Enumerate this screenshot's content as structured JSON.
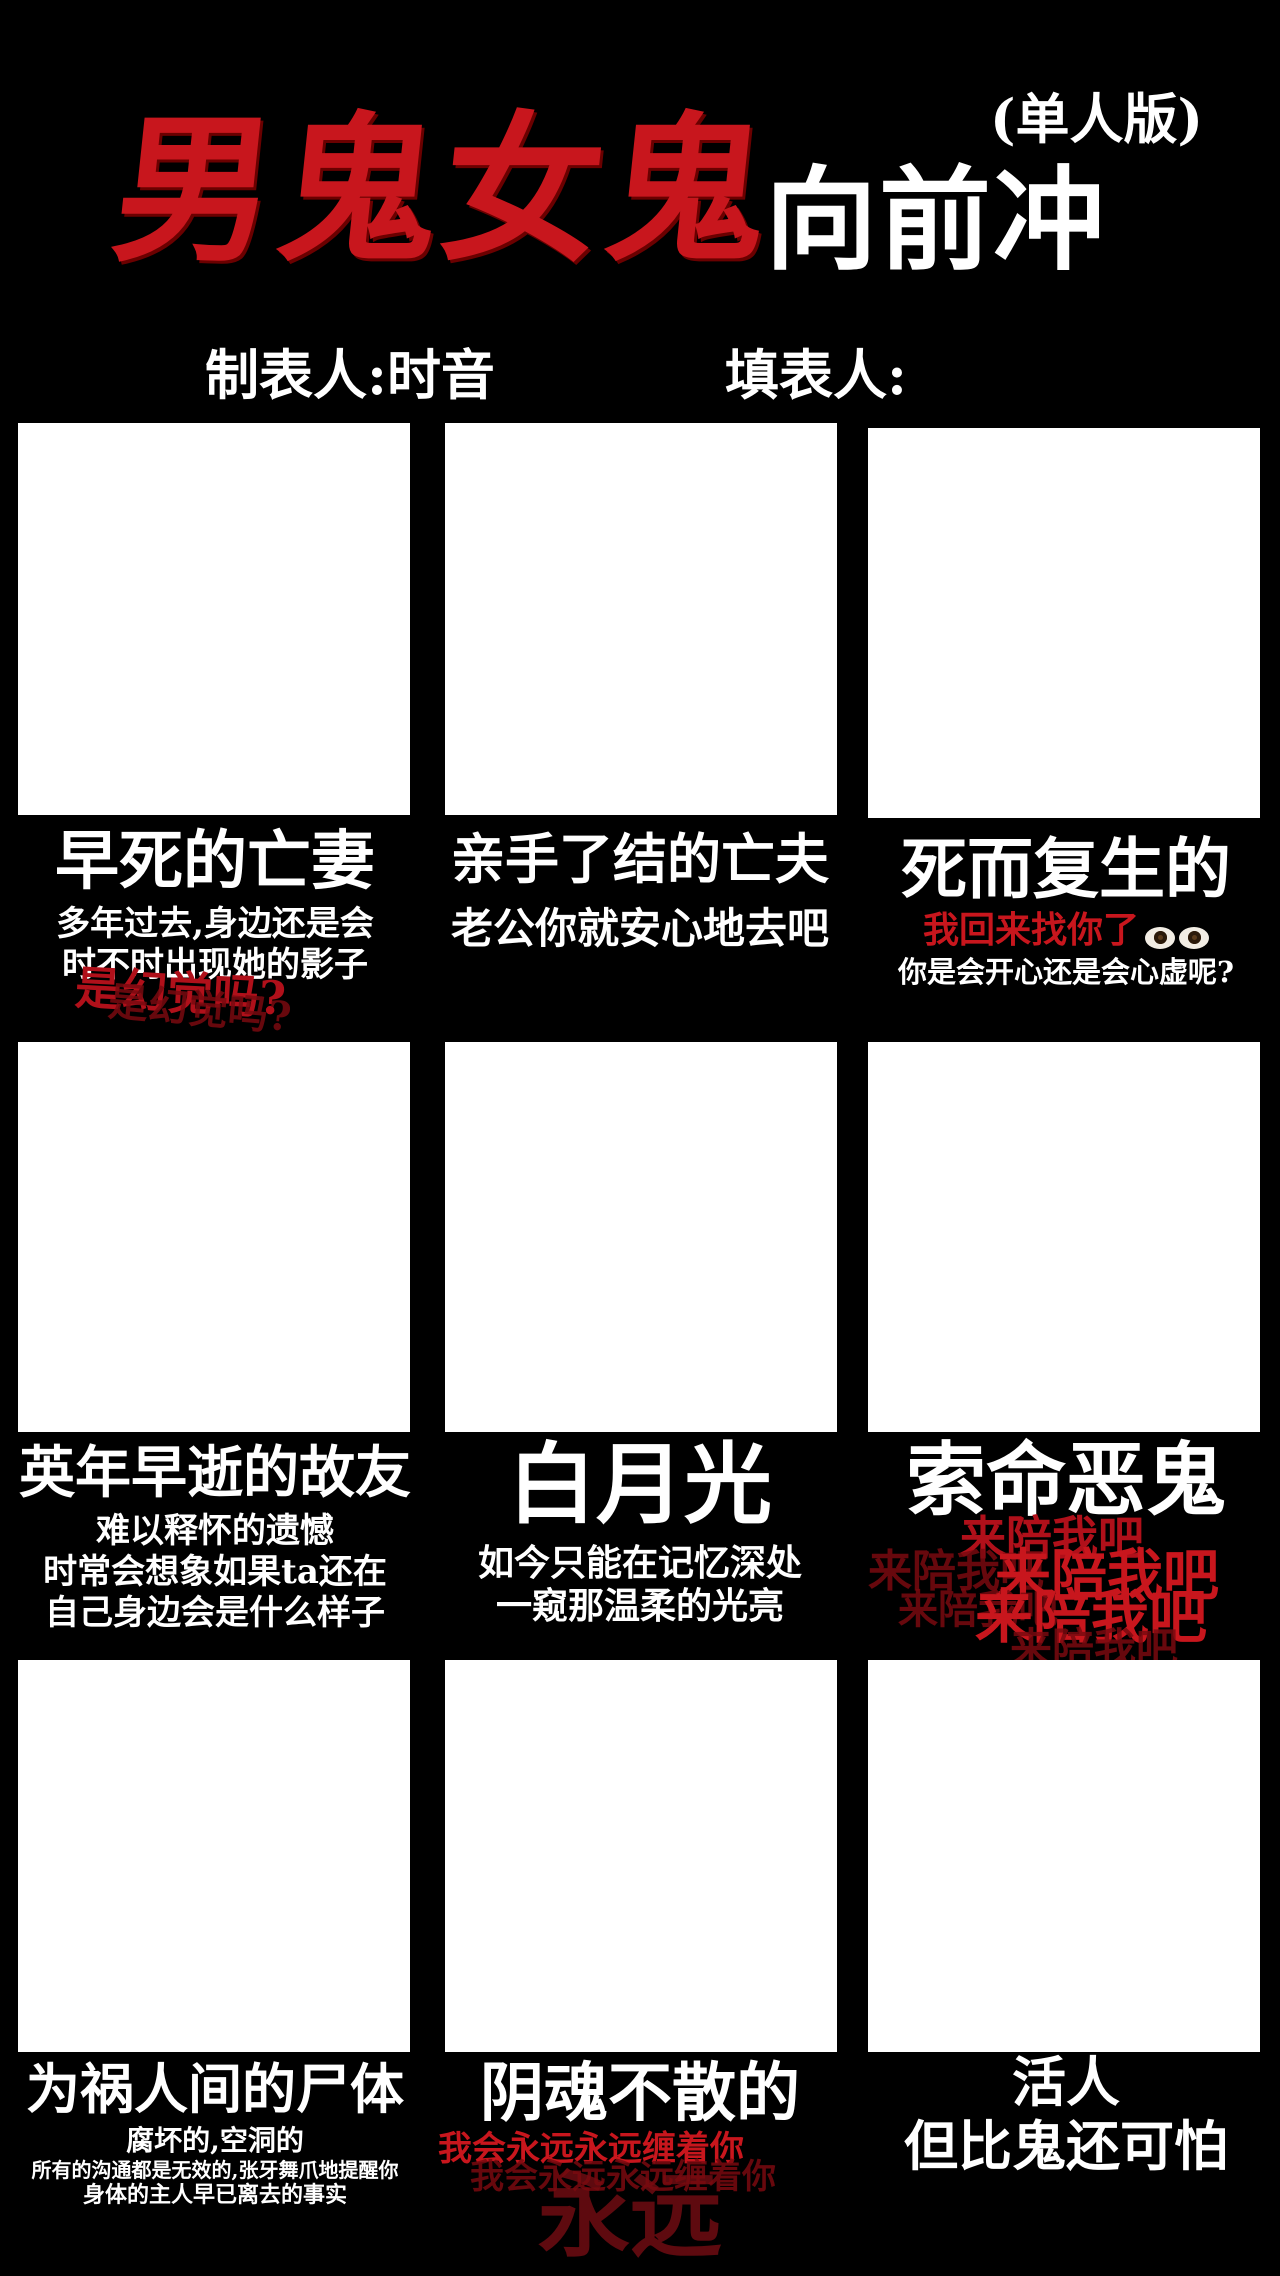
{
  "header": {
    "title_red": "男鬼女鬼",
    "title_white": "向前冲",
    "subtitle": "(单人版)",
    "maker_label": "制表人:",
    "maker_name": "时音",
    "filler_label": "填表人:"
  },
  "cells": [
    {
      "title": "早死的亡妻",
      "lines": [
        "多年过去,身边还是会",
        "时不时出现她的影子"
      ],
      "red_lines": [
        "是幻觉吗?",
        "是幻觉吗?"
      ]
    },
    {
      "title": "亲手了结的亡夫",
      "lines": [
        "老公你就安心地去吧"
      ]
    },
    {
      "title": "死而复生的",
      "red_line": "我回来找你了",
      "eyes_icon": "eyes-emoji",
      "lines": [
        "你是会开心还是会心虚呢?"
      ]
    },
    {
      "title": "英年早逝的故友",
      "lines": [
        "难以释怀的遗憾",
        "时常会想象如果ta还在",
        "自己身边会是什么样子"
      ]
    },
    {
      "title": "白月光",
      "lines": [
        "如今只能在记忆深处",
        "一窥那温柔的光亮"
      ]
    },
    {
      "title": "索命恶鬼",
      "red_lines": [
        "来陪我吧",
        "来陪我吧",
        "来陪我吧",
        "来陪我吧",
        "来陪我吧",
        "来陪我吧"
      ]
    },
    {
      "title": "为祸人间的尸体",
      "lines": [
        "腐坏的,空洞的",
        "所有的沟通都是无效的,张牙舞爪地提醒你",
        "身体的主人早已离去的事实"
      ]
    },
    {
      "title": "阴魂不散的",
      "red_lines": [
        "我会永远永远缠着你",
        "我会永远永远缠着你",
        "永远"
      ]
    },
    {
      "title": "活人",
      "lines": [
        "但比鬼还可怕"
      ]
    }
  ],
  "colors": {
    "accent_red": "#c8161d",
    "background": "#000000",
    "panel": "#ffffff"
  }
}
